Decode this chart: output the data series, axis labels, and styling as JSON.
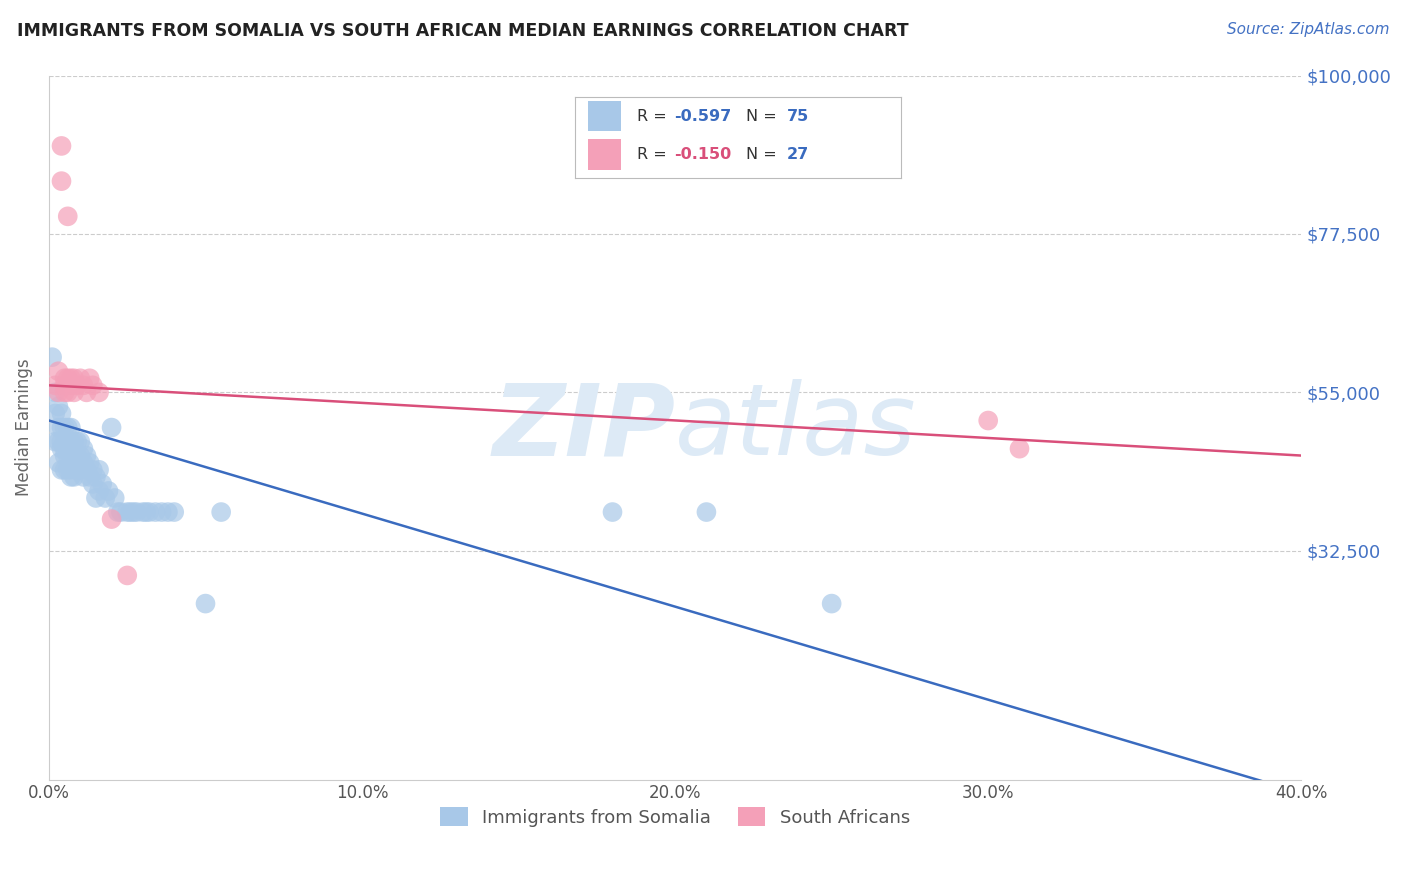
{
  "title": "IMMIGRANTS FROM SOMALIA VS SOUTH AFRICAN MEDIAN EARNINGS CORRELATION CHART",
  "source": "Source: ZipAtlas.com",
  "ylabel": "Median Earnings",
  "x_min": 0.0,
  "x_max": 0.4,
  "y_min": 0,
  "y_max": 100000,
  "yticks": [
    0,
    32500,
    55000,
    77500,
    100000
  ],
  "ytick_labels": [
    "",
    "$32,500",
    "$55,000",
    "$77,500",
    "$100,000"
  ],
  "xticks": [
    0.0,
    0.1,
    0.2,
    0.3,
    0.4
  ],
  "xtick_labels": [
    "0.0%",
    "10.0%",
    "20.0%",
    "30.0%",
    "40.0%"
  ],
  "legend1_R": "R = ",
  "legend1_Rval": "-0.597",
  "legend1_N": "   N = ",
  "legend1_Nval": "75",
  "legend2_R": "R = ",
  "legend2_Rval": "-0.150",
  "legend2_N": "   N = ",
  "legend2_Nval": "27",
  "legend_bottom1": "Immigrants from Somalia",
  "legend_bottom2": "South Africans",
  "color_blue": "#a8c8e8",
  "color_pink": "#f4a0b8",
  "color_blue_line": "#3a6bbf",
  "color_pink_line": "#d94f7a",
  "color_Rval_blue": "#3a6bbf",
  "color_Rval_pink": "#d94f7a",
  "color_Nval": "#3a6bbf",
  "color_title": "#222222",
  "color_source": "#4472c4",
  "color_axis_right": "#4472c4",
  "watermark": "ZIPatlas",
  "watermark_color": "#ddeaf6",
  "blue_x": [
    0.001,
    0.002,
    0.002,
    0.002,
    0.003,
    0.003,
    0.003,
    0.003,
    0.004,
    0.004,
    0.004,
    0.004,
    0.004,
    0.005,
    0.005,
    0.005,
    0.005,
    0.005,
    0.006,
    0.006,
    0.006,
    0.006,
    0.006,
    0.007,
    0.007,
    0.007,
    0.007,
    0.007,
    0.007,
    0.008,
    0.008,
    0.008,
    0.008,
    0.009,
    0.009,
    0.009,
    0.01,
    0.01,
    0.01,
    0.011,
    0.011,
    0.011,
    0.012,
    0.012,
    0.013,
    0.013,
    0.014,
    0.014,
    0.015,
    0.015,
    0.016,
    0.016,
    0.017,
    0.018,
    0.019,
    0.02,
    0.021,
    0.022,
    0.023,
    0.025,
    0.026,
    0.027,
    0.028,
    0.03,
    0.031,
    0.032,
    0.034,
    0.036,
    0.038,
    0.04,
    0.05,
    0.055,
    0.18,
    0.21,
    0.25
  ],
  "blue_y": [
    60000,
    55000,
    48000,
    52000,
    50000,
    48000,
    45000,
    53000,
    47000,
    50000,
    44000,
    48000,
    52000,
    46000,
    48000,
    44000,
    50000,
    47000,
    46000,
    48000,
    44000,
    47000,
    50000,
    46000,
    48000,
    44000,
    47000,
    43000,
    50000,
    45000,
    47000,
    43000,
    48000,
    44000,
    46000,
    48000,
    44000,
    46000,
    48000,
    45000,
    43000,
    47000,
    44000,
    46000,
    43000,
    45000,
    42000,
    44000,
    40000,
    43000,
    41000,
    44000,
    42000,
    40000,
    41000,
    50000,
    40000,
    38000,
    38000,
    38000,
    38000,
    38000,
    38000,
    38000,
    38000,
    38000,
    38000,
    38000,
    38000,
    38000,
    25000,
    38000,
    38000,
    38000,
    25000
  ],
  "pink_x": [
    0.002,
    0.003,
    0.003,
    0.004,
    0.004,
    0.005,
    0.005,
    0.005,
    0.006,
    0.006,
    0.006,
    0.006,
    0.007,
    0.007,
    0.008,
    0.008,
    0.009,
    0.01,
    0.011,
    0.012,
    0.013,
    0.014,
    0.016,
    0.02,
    0.025,
    0.3,
    0.31
  ],
  "pink_y": [
    56000,
    58000,
    55000,
    90000,
    85000,
    57000,
    56000,
    55000,
    80000,
    57000,
    56000,
    55000,
    57000,
    56000,
    57000,
    55000,
    56000,
    57000,
    56000,
    55000,
    57000,
    56000,
    55000,
    37000,
    29000,
    51000,
    47000
  ],
  "blue_trend_x": [
    0.0,
    0.401
  ],
  "blue_trend_y": [
    51000,
    -2000
  ],
  "pink_trend_x": [
    0.0,
    0.401
  ],
  "pink_trend_y": [
    56000,
    46000
  ]
}
